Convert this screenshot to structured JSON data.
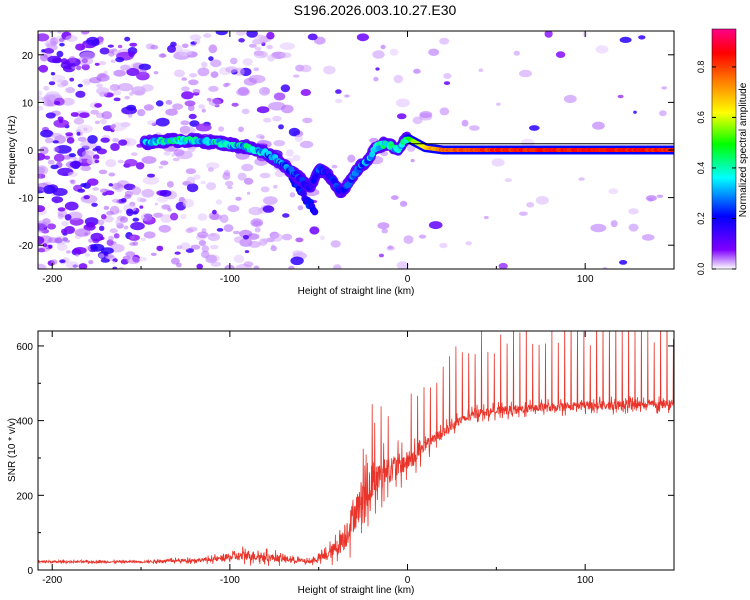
{
  "title": "S196.2026.003.10.27.E30",
  "colors": {
    "line": "#e8342a",
    "axis": "#000000",
    "gradient": [
      "#ffffff",
      "#7f00ff",
      "#0000ff",
      "#00ffff",
      "#00ff00",
      "#ffff00",
      "#ff7f00",
      "#ff0000",
      "#ff00aa"
    ]
  },
  "chart_data": [
    {
      "type": "heatmap",
      "title": "",
      "xlabel": "Height of straight line (km)",
      "ylabel": "Frequency (Hz)",
      "xlim": [
        -208,
        150
      ],
      "ylim": [
        -25,
        25
      ],
      "xticks": [
        -200,
        -100,
        0,
        100
      ],
      "xtick_labels": [
        "-200",
        "-100",
        "0",
        "100"
      ],
      "yticks": [
        -20,
        -10,
        0,
        10,
        20
      ],
      "ytick_labels": [
        "-20",
        "-10",
        "0",
        "10",
        "20"
      ],
      "colorbar": {
        "label": "Normalized spectral amplitude",
        "range": [
          0,
          0.95
        ],
        "ticks": [
          0.0,
          0.2,
          0.4,
          0.6,
          0.8
        ],
        "tick_labels": [
          "0.0",
          "0.2",
          "0.4",
          "0.6",
          "0.8"
        ]
      },
      "ridge_x": [
        -148,
        -135,
        -120,
        -105,
        -90,
        -80,
        -70,
        -62,
        -55,
        -50,
        -45,
        -40,
        -37,
        -33,
        -28,
        -22,
        -18,
        -12,
        -6,
        0,
        5,
        10,
        20,
        40,
        80,
        120,
        150
      ],
      "ridge_y": [
        1.5,
        2.0,
        2.0,
        1.5,
        0.5,
        -0.5,
        -3.0,
        -5.5,
        -8.0,
        -4.0,
        -5.0,
        -7.5,
        -9.0,
        -7.0,
        -4.0,
        -2.0,
        0.5,
        1.5,
        0.0,
        2.5,
        1.5,
        0.5,
        0.0,
        0.0,
        0.0,
        0.0,
        0.0
      ],
      "ridge_amplitude": [
        0.35,
        0.45,
        0.42,
        0.4,
        0.4,
        0.35,
        0.3,
        0.25,
        0.2,
        0.25,
        0.25,
        0.25,
        0.2,
        0.28,
        0.3,
        0.35,
        0.4,
        0.45,
        0.45,
        0.55,
        0.6,
        0.7,
        0.8,
        0.85,
        0.88,
        0.88,
        0.88
      ],
      "secondary_ridge_x": [
        -65,
        -60,
        -56,
        -52
      ],
      "secondary_ridge_y": [
        -6,
        -9,
        -11,
        -12.5
      ]
    },
    {
      "type": "line",
      "title": "",
      "xlabel": "Height of straight line (km)",
      "ylabel": "SNR (10 * v/v)",
      "xlim": [
        -208,
        150
      ],
      "ylim": [
        0,
        640
      ],
      "xticks": [
        -200,
        -100,
        0,
        100
      ],
      "xtick_labels": [
        "-200",
        "-100",
        "0",
        "100"
      ],
      "yticks": [
        0,
        200,
        400,
        600
      ],
      "ytick_labels": [
        "0",
        "200",
        "400",
        "600"
      ],
      "trend_x": [
        -208,
        -150,
        -110,
        -90,
        -70,
        -55,
        -45,
        -40,
        -35,
        -30,
        -25,
        -20,
        -15,
        -10,
        -5,
        0,
        10,
        20,
        30,
        40,
        60,
        80,
        100,
        120,
        150
      ],
      "trend_y": [
        22,
        22,
        28,
        40,
        30,
        22,
        40,
        60,
        90,
        150,
        190,
        230,
        255,
        270,
        280,
        290,
        330,
        370,
        400,
        420,
        430,
        435,
        440,
        440,
        445
      ],
      "noise_amplitude": [
        6,
        6,
        12,
        30,
        20,
        10,
        30,
        50,
        80,
        100,
        110,
        100,
        90,
        80,
        70,
        60,
        40,
        30,
        25,
        25,
        25,
        25,
        25,
        25,
        25
      ],
      "spike_interval_km": 3.6,
      "spike_start_km": 2,
      "spike_height": [
        180,
        220,
        230,
        230
      ]
    }
  ]
}
